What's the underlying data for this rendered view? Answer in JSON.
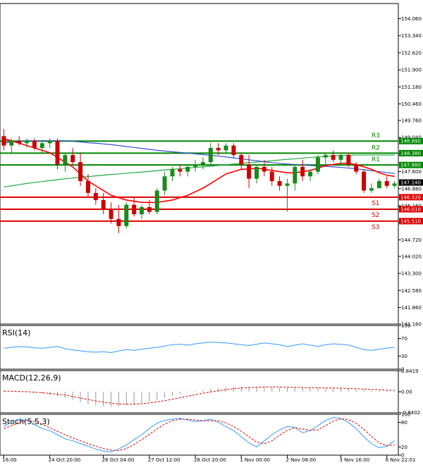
{
  "chart_data": {
    "type": "candlestick",
    "symbol_hint": "",
    "colors": {
      "bull": "#1a8a1a",
      "bear": "#cc0000",
      "ma_fast": "#ff0000",
      "ma_slow": "#3355cc",
      "ma_long": "#22aa44",
      "resistance": "#008800",
      "support": "#dd0000",
      "rsi": "#3399ff",
      "macd_signal": "#dd0000",
      "macd_hist": "#999999",
      "stoch_k": "#3399ff",
      "stoch_d": "#dd0000",
      "price_tag_bg": "#000000"
    },
    "main": {
      "ylim": [
        141.16,
        154.7
      ],
      "y_ticks": [
        "154.060",
        "153.340",
        "152.620",
        "151.900",
        "151.180",
        "150.460",
        "149.760",
        "149.040",
        "148.320",
        "147.600",
        "146.880",
        "146.160",
        "145.440",
        "144.720",
        "144.020",
        "143.300",
        "142.580",
        "141.860",
        "141.160"
      ],
      "y_tick_values": [
        154.06,
        153.34,
        152.62,
        151.9,
        151.18,
        150.46,
        149.76,
        149.04,
        148.32,
        147.6,
        146.88,
        146.16,
        145.44,
        144.72,
        144.02,
        143.3,
        142.58,
        141.86,
        141.16
      ],
      "levels": [
        {
          "name": "R3",
          "value": 148.89,
          "label": "148.890",
          "kind": "resistance"
        },
        {
          "name": "R2",
          "value": 148.38,
          "label": "148.380",
          "kind": "resistance"
        },
        {
          "name": "R1",
          "value": 147.88,
          "label": "147.880",
          "kind": "resistance"
        },
        {
          "name": "S1",
          "value": 146.52,
          "label": "146.520",
          "kind": "support"
        },
        {
          "name": "S2",
          "value": 146.01,
          "label": "146.010",
          "kind": "support"
        },
        {
          "name": "S3",
          "value": 145.51,
          "label": "145.510",
          "kind": "support"
        }
      ],
      "current_price": {
        "value": 147.14,
        "label": "147.140"
      },
      "candles": [
        [
          149.1,
          149.4,
          148.5,
          148.7
        ],
        [
          148.7,
          149.0,
          148.4,
          148.9
        ],
        [
          148.9,
          149.1,
          148.7,
          148.8
        ],
        [
          148.8,
          149.0,
          148.6,
          148.9
        ],
        [
          148.9,
          149.0,
          148.5,
          148.6
        ],
        [
          148.6,
          148.9,
          148.4,
          148.8
        ],
        [
          148.8,
          149.0,
          148.6,
          148.9
        ],
        [
          148.9,
          149.0,
          147.7,
          147.9
        ],
        [
          147.9,
          148.4,
          147.6,
          148.3
        ],
        [
          148.3,
          148.6,
          147.9,
          148.0
        ],
        [
          148.0,
          148.4,
          147.0,
          147.2
        ],
        [
          147.2,
          147.5,
          146.5,
          146.7
        ],
        [
          146.7,
          146.9,
          146.2,
          146.4
        ],
        [
          146.4,
          146.7,
          145.8,
          146.0
        ],
        [
          146.0,
          146.3,
          145.4,
          145.6
        ],
        [
          145.6,
          146.2,
          145.0,
          145.3
        ],
        [
          145.3,
          146.3,
          145.2,
          146.2
        ],
        [
          146.2,
          146.5,
          145.7,
          145.8
        ],
        [
          145.8,
          146.2,
          145.6,
          146.1
        ],
        [
          146.1,
          146.4,
          145.8,
          145.9
        ],
        [
          145.9,
          146.9,
          145.8,
          146.8
        ],
        [
          146.8,
          147.6,
          146.6,
          147.4
        ],
        [
          147.4,
          147.8,
          147.2,
          147.7
        ],
        [
          147.7,
          147.9,
          147.4,
          147.6
        ],
        [
          147.6,
          147.9,
          147.4,
          147.8
        ],
        [
          147.8,
          148.1,
          147.6,
          147.9
        ],
        [
          147.9,
          148.2,
          147.7,
          148.0
        ],
        [
          148.0,
          148.8,
          147.9,
          148.6
        ],
        [
          148.6,
          148.8,
          148.3,
          148.5
        ],
        [
          148.5,
          148.8,
          148.4,
          148.7
        ],
        [
          148.7,
          148.8,
          148.2,
          148.3
        ],
        [
          148.3,
          148.4,
          147.7,
          147.9
        ],
        [
          147.9,
          148.3,
          146.9,
          147.3
        ],
        [
          147.3,
          147.9,
          147.1,
          147.8
        ],
        [
          147.8,
          148.1,
          147.4,
          147.6
        ],
        [
          147.6,
          147.8,
          147.0,
          147.2
        ],
        [
          147.2,
          147.4,
          146.8,
          147.0
        ],
        [
          147.0,
          147.3,
          145.9,
          147.1
        ],
        [
          147.1,
          147.9,
          146.8,
          147.8
        ],
        [
          147.8,
          148.1,
          147.2,
          147.4
        ],
        [
          147.4,
          147.7,
          147.2,
          147.6
        ],
        [
          147.6,
          148.3,
          147.5,
          148.2
        ],
        [
          148.2,
          148.4,
          147.9,
          148.3
        ],
        [
          148.3,
          148.5,
          148.0,
          148.1
        ],
        [
          148.1,
          148.4,
          147.9,
          148.3
        ],
        [
          148.3,
          148.4,
          147.8,
          147.9
        ],
        [
          147.9,
          148.0,
          147.5,
          147.6
        ],
        [
          147.6,
          147.7,
          146.7,
          146.8
        ],
        [
          146.8,
          147.1,
          146.7,
          146.9
        ],
        [
          146.9,
          147.3,
          146.9,
          147.2
        ],
        [
          147.2,
          147.4,
          146.9,
          147.0
        ],
        [
          147.0,
          147.2,
          146.9,
          147.1
        ]
      ],
      "ma_fast": [
        149.0,
        148.9,
        148.8,
        148.7,
        148.6,
        148.5,
        148.4,
        148.2,
        148.0,
        147.8,
        147.5,
        147.2,
        147.0,
        146.8,
        146.6,
        146.5,
        146.4,
        146.35,
        146.3,
        146.3,
        146.3,
        146.35,
        146.4,
        146.5,
        146.6,
        146.75,
        146.9,
        147.1,
        147.3,
        147.5,
        147.6,
        147.7,
        147.7,
        147.75,
        147.7,
        147.65,
        147.6,
        147.55,
        147.55,
        147.6,
        147.65,
        147.75,
        147.85,
        147.9,
        147.95,
        147.95,
        147.9,
        147.8,
        147.7,
        147.55,
        147.45,
        147.4
      ],
      "ma_slow": [
        148.8,
        148.85,
        148.88,
        148.9,
        148.9,
        148.9,
        148.9,
        148.9,
        148.9,
        148.88,
        148.85,
        148.82,
        148.8,
        148.77,
        148.74,
        148.7,
        148.66,
        148.62,
        148.58,
        148.54,
        148.5,
        148.47,
        148.44,
        148.41,
        148.38,
        148.35,
        148.32,
        148.29,
        148.26,
        148.22,
        148.18,
        148.14,
        148.1,
        148.06,
        148.02,
        147.98,
        147.95,
        147.92,
        147.9,
        147.88,
        147.86,
        147.84,
        147.82,
        147.8,
        147.78,
        147.75,
        147.72,
        147.68,
        147.64,
        147.6,
        147.56,
        147.52
      ],
      "ma_long": [
        146.95,
        147.0,
        147.05,
        147.1,
        147.14,
        147.18,
        147.22,
        147.26,
        147.3,
        147.33,
        147.36,
        147.39,
        147.42,
        147.45,
        147.48,
        147.5,
        147.53,
        147.56,
        147.58,
        147.61,
        147.64,
        147.67,
        147.7,
        147.72,
        147.75,
        147.78,
        147.8,
        147.83,
        147.86,
        147.89,
        147.92,
        147.95,
        147.98,
        148.0,
        148.03,
        148.06,
        148.09,
        148.12,
        148.14,
        148.17,
        148.2,
        148.22,
        148.24,
        148.26,
        148.28,
        148.29,
        148.3,
        148.3,
        148.3,
        148.3,
        148.3,
        148.3
      ]
    },
    "x_ticks": [
      "16:00",
      "24 Oct 20:00",
      "26 Oct 04:00",
      "27 Oct 12:00",
      "28 Oct 20:00",
      "1 Nov 00:00",
      "2 Nov 08:00",
      "3 Nov 16:00",
      "6 Nov 22:01"
    ],
    "rsi": {
      "label": "RSI(14)",
      "ylim": [
        0,
        100
      ],
      "y_ticks": [
        "100",
        "70",
        "30",
        "0"
      ],
      "y_tick_values": [
        100,
        70,
        30,
        0
      ],
      "values": [
        48,
        50,
        52,
        51,
        49,
        48,
        50,
        52,
        47,
        44,
        42,
        40,
        39,
        40,
        38,
        42,
        45,
        43,
        46,
        48,
        50,
        53,
        56,
        57,
        55,
        58,
        60,
        62,
        61,
        60,
        58,
        56,
        54,
        57,
        60,
        58,
        56,
        52,
        55,
        58,
        55,
        52,
        56,
        58,
        57,
        55,
        50,
        45,
        43,
        46,
        48,
        50
      ]
    },
    "macd": {
      "label": "MACD(12,26,9)",
      "ylim": [
        -0.85,
        0.85
      ],
      "y_ticks": [
        "0.8419",
        "0.00",
        "-0.8402"
      ],
      "y_tick_values": [
        0.8419,
        0,
        -0.8402
      ],
      "histogram": [
        0.05,
        0.02,
        0.0,
        -0.02,
        -0.05,
        -0.08,
        -0.12,
        -0.18,
        -0.25,
        -0.33,
        -0.42,
        -0.5,
        -0.55,
        -0.58,
        -0.6,
        -0.6,
        -0.55,
        -0.5,
        -0.45,
        -0.4,
        -0.33,
        -0.25,
        -0.17,
        -0.1,
        -0.03,
        0.03,
        0.08,
        0.12,
        0.15,
        0.18,
        0.2,
        0.21,
        0.21,
        0.2,
        0.19,
        0.18,
        0.17,
        0.16,
        0.16,
        0.15,
        0.15,
        0.14,
        0.14,
        0.13,
        0.12,
        0.12,
        0.1,
        0.08,
        0.06,
        0.05,
        0.03,
        0.02
      ],
      "signal": [
        0.02,
        0.02,
        0.01,
        0.0,
        -0.02,
        -0.04,
        -0.07,
        -0.1,
        -0.14,
        -0.19,
        -0.25,
        -0.31,
        -0.37,
        -0.42,
        -0.46,
        -0.49,
        -0.5,
        -0.5,
        -0.48,
        -0.45,
        -0.41,
        -0.36,
        -0.3,
        -0.24,
        -0.18,
        -0.12,
        -0.06,
        -0.01,
        0.04,
        0.08,
        0.12,
        0.15,
        0.17,
        0.18,
        0.19,
        0.19,
        0.19,
        0.18,
        0.18,
        0.17,
        0.16,
        0.16,
        0.15,
        0.15,
        0.14,
        0.13,
        0.12,
        0.11,
        0.09,
        0.08,
        0.06,
        0.05
      ]
    },
    "stoch": {
      "label": "Stoch(5,5,3)",
      "ylim": [
        0,
        100
      ],
      "y_ticks": [
        "100",
        "80",
        "20",
        "0"
      ],
      "y_tick_values": [
        100,
        80,
        20,
        0
      ],
      "k": [
        70,
        82,
        88,
        85,
        75,
        65,
        60,
        50,
        40,
        35,
        28,
        22,
        15,
        10,
        8,
        15,
        25,
        38,
        50,
        65,
        78,
        85,
        88,
        90,
        86,
        82,
        84,
        88,
        80,
        70,
        60,
        45,
        30,
        20,
        35,
        50,
        62,
        70,
        68,
        55,
        60,
        72,
        85,
        92,
        90,
        80,
        65,
        45,
        28,
        18,
        22,
        35
      ],
      "d": [
        65,
        72,
        80,
        85,
        82,
        75,
        67,
        58,
        50,
        42,
        35,
        28,
        22,
        16,
        12,
        11,
        16,
        26,
        38,
        51,
        64,
        76,
        84,
        88,
        88,
        86,
        84,
        84,
        84,
        79,
        70,
        58,
        45,
        32,
        28,
        35,
        49,
        61,
        67,
        64,
        61,
        62,
        72,
        83,
        89,
        87,
        78,
        63,
        46,
        30,
        23,
        25
      ]
    }
  }
}
